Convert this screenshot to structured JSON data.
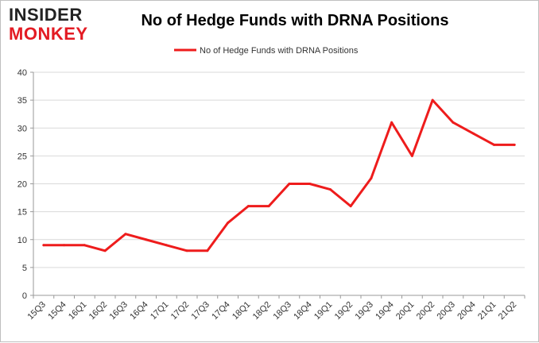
{
  "logo": {
    "line1": "INSIDER",
    "line2": "MONKEY"
  },
  "colors": {
    "series": "#ee1c1c",
    "grid": "#d9d9d9",
    "axis": "#999999",
    "brand_red": "#e31b23"
  },
  "chart_data": {
    "type": "line",
    "title": "No of Hedge Funds with DRNA Positions",
    "xlabel": "",
    "ylabel": "",
    "ylim": [
      0,
      40
    ],
    "yticks": [
      0,
      5,
      10,
      15,
      20,
      25,
      30,
      35,
      40
    ],
    "grid": true,
    "legend_position": "top-center",
    "categories": [
      "15Q3",
      "15Q4",
      "16Q1",
      "16Q2",
      "16Q3",
      "16Q4",
      "17Q1",
      "17Q2",
      "17Q3",
      "17Q4",
      "18Q1",
      "18Q2",
      "18Q3",
      "18Q4",
      "19Q1",
      "19Q2",
      "19Q3",
      "19Q4",
      "20Q1",
      "20Q2",
      "20Q3",
      "20Q4",
      "21Q1",
      "21Q2"
    ],
    "series": [
      {
        "name": "No of Hedge Funds with DRNA Positions",
        "values": [
          9,
          9,
          9,
          8,
          11,
          10,
          9,
          8,
          8,
          13,
          16,
          16,
          20,
          20,
          19,
          16,
          21,
          31,
          25,
          35,
          31,
          29,
          27,
          27
        ]
      }
    ]
  }
}
